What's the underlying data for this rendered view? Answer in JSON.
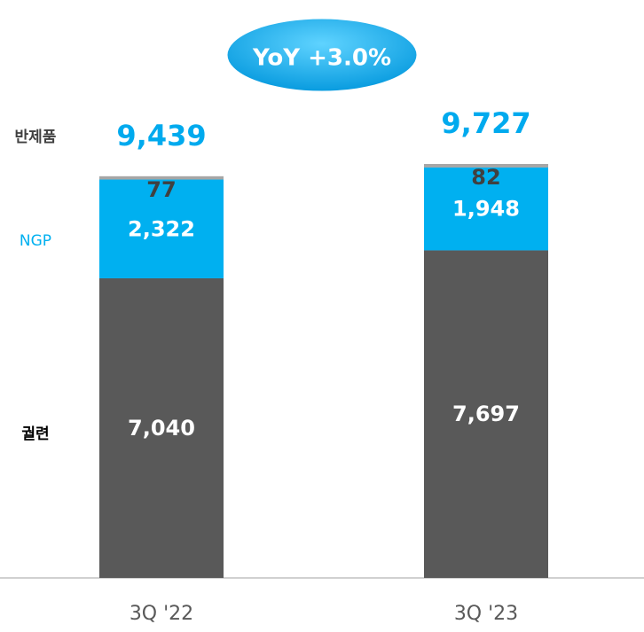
{
  "chart_data": {
    "type": "stacked_bar",
    "annotation": "YoY +3.0%",
    "categories": [
      "3Q '22",
      "3Q '23"
    ],
    "series": [
      {
        "name": "궐련",
        "color": "#595959",
        "label_color": "#ffffff",
        "values": [
          7040,
          7697
        ],
        "value_labels": [
          "7,040",
          "7,697"
        ]
      },
      {
        "name": "NGP",
        "color": "#00b0f0",
        "label_color": "#ffffff",
        "values": [
          2322,
          1948
        ],
        "value_labels": [
          "2,322",
          "1,948"
        ]
      },
      {
        "name": "반제품",
        "color": "#a6a6a6",
        "label_color": "#404040",
        "values": [
          77,
          82
        ],
        "value_labels": [
          "77",
          "82"
        ]
      }
    ],
    "totals": [
      9439,
      9727
    ],
    "total_labels": [
      "9,439",
      "9,727"
    ]
  }
}
